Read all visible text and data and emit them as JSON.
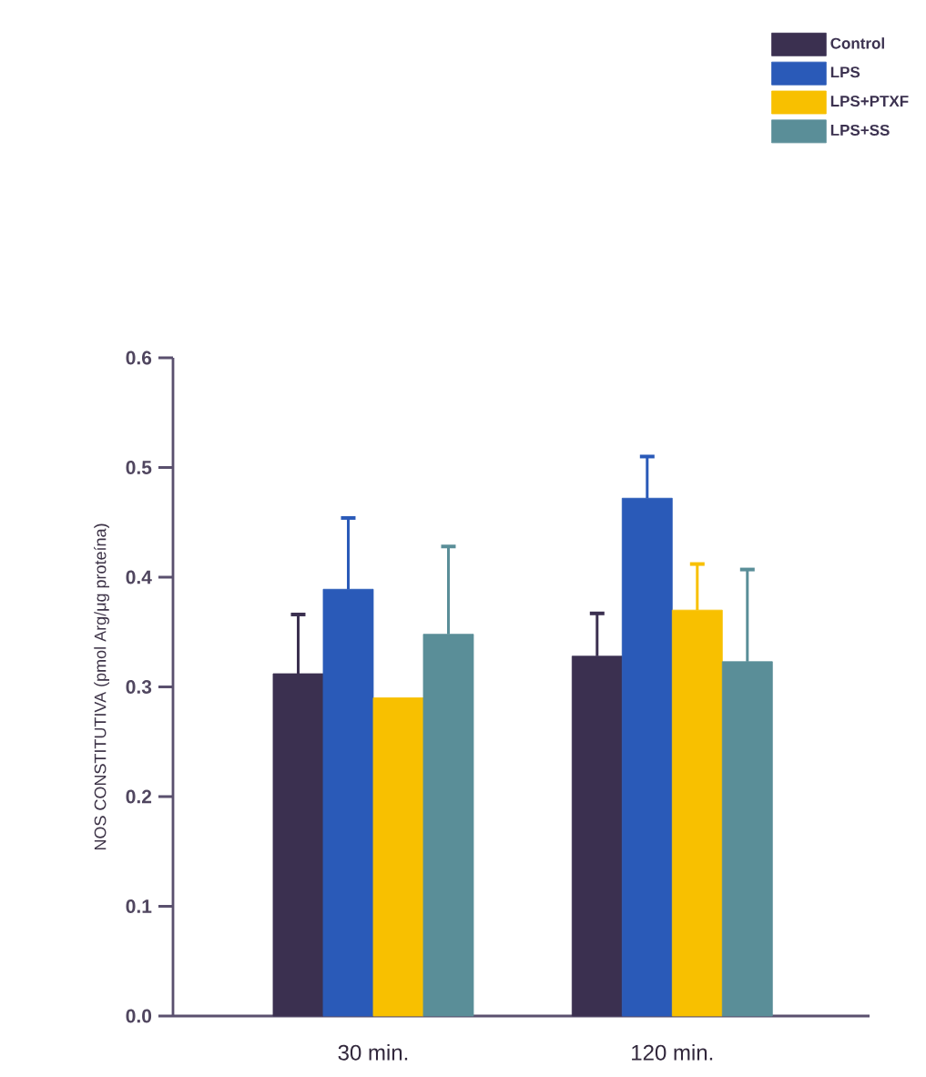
{
  "chart_data": {
    "type": "bar",
    "ylabel": "NOS CONSTITUTIVA (pmol Arg/μg proteína)",
    "categories": [
      "30 min.",
      "120 min."
    ],
    "series": [
      {
        "name": "Control",
        "color": "#3b3050",
        "values": [
          0.312,
          0.328
        ],
        "errors": [
          [
            0.312,
            0.366
          ],
          [
            0.328,
            0.367
          ]
        ]
      },
      {
        "name": "LPS",
        "color": "#2a5ab8",
        "values": [
          0.389,
          0.472
        ],
        "errors": [
          [
            0.389,
            0.454
          ],
          [
            0.472,
            0.51
          ]
        ]
      },
      {
        "name": "LPS+PTXF",
        "color": "#f8c000",
        "values": [
          0.29,
          0.37
        ],
        "errors": [
          null,
          [
            0.37,
            0.412
          ]
        ]
      },
      {
        "name": "LPS+SS",
        "color": "#5a8e98",
        "values": [
          0.348,
          0.323
        ],
        "errors": [
          [
            0.348,
            0.428
          ],
          [
            0.323,
            0.407
          ]
        ]
      }
    ],
    "ylim": [
      0,
      0.6
    ],
    "yticks": [
      {
        "value": 0,
        "label": "0.0"
      },
      0.1,
      0.2,
      0.3,
      0.4,
      0.5,
      0.6
    ],
    "legend": "top right"
  }
}
